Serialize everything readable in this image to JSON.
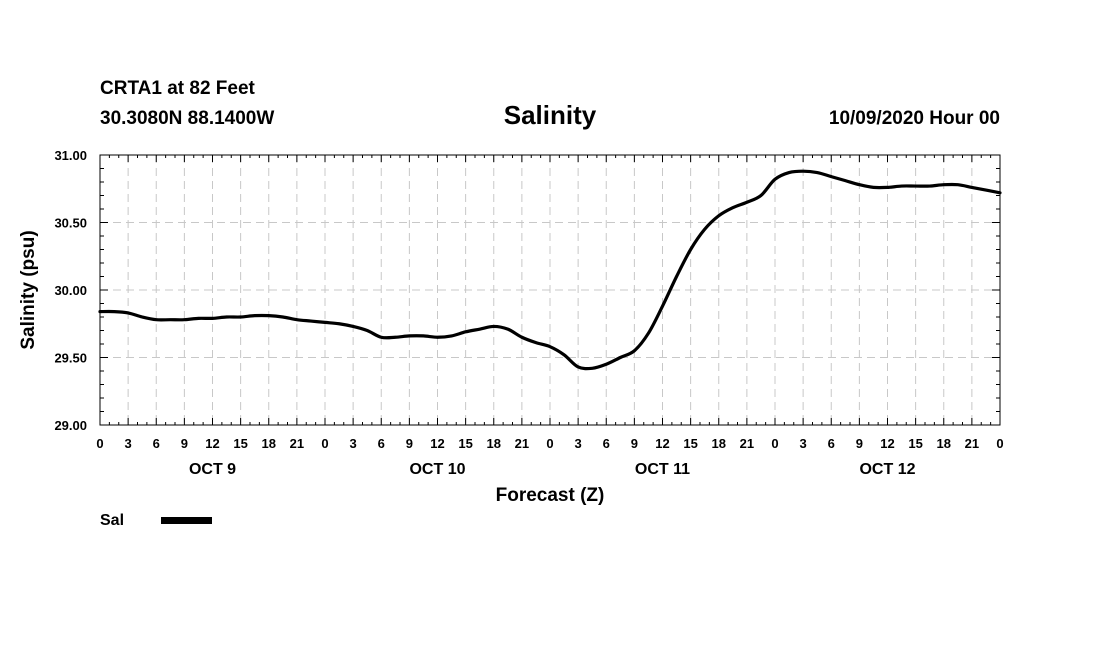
{
  "header": {
    "station": "CRTA1 at 82 Feet",
    "coords": "30.3080N 88.1400W",
    "title": "Salinity",
    "run": "10/09/2020 Hour 00"
  },
  "legend": {
    "label": "Sal"
  },
  "chart_data": {
    "type": "line",
    "title": "Salinity",
    "xlabel": "Forecast (Z)",
    "ylabel": "Salinity (psu)",
    "ylim": [
      29.0,
      31.0
    ],
    "yticks": [
      "29.00",
      "29.50",
      "30.00",
      "30.50",
      "31.00"
    ],
    "xlim": [
      0,
      96
    ],
    "xticks": [
      "0",
      "3",
      "6",
      "9",
      "12",
      "15",
      "18",
      "21",
      "0",
      "3",
      "6",
      "9",
      "12",
      "15",
      "18",
      "21",
      "0",
      "3",
      "6",
      "9",
      "12",
      "15",
      "18",
      "21",
      "0",
      "3",
      "6",
      "9",
      "12",
      "15",
      "18",
      "21",
      "0"
    ],
    "day_labels": [
      "OCT 9",
      "OCT 10",
      "OCT 11",
      "OCT 12"
    ],
    "grid": true,
    "legend_position": "bottom-left",
    "series": [
      {
        "name": "Sal",
        "color": "#000000",
        "x": [
          0,
          1.5,
          3,
          4.5,
          6,
          7.5,
          9,
          10.5,
          12,
          13.5,
          15,
          16.5,
          18,
          19.5,
          21,
          22.5,
          24,
          25.5,
          27,
          28.5,
          30,
          31.5,
          33,
          34.5,
          36,
          37.5,
          39,
          40.5,
          42,
          43.5,
          45,
          46.5,
          48,
          49.5,
          51,
          52.5,
          54,
          55.5,
          57,
          58.5,
          60,
          61.5,
          63,
          64.5,
          66,
          67.5,
          69,
          70.5,
          72,
          73.5,
          75,
          76.5,
          78,
          79.5,
          81,
          82.5,
          84,
          85.5,
          87,
          88.5,
          90,
          91.5,
          93,
          94.5,
          96
        ],
        "values": [
          29.84,
          29.84,
          29.83,
          29.8,
          29.78,
          29.78,
          29.78,
          29.79,
          29.79,
          29.8,
          29.8,
          29.81,
          29.81,
          29.8,
          29.78,
          29.77,
          29.76,
          29.75,
          29.73,
          29.7,
          29.65,
          29.65,
          29.66,
          29.66,
          29.65,
          29.66,
          29.69,
          29.71,
          29.73,
          29.71,
          29.65,
          29.61,
          29.58,
          29.52,
          29.43,
          29.42,
          29.45,
          29.5,
          29.55,
          29.68,
          29.88,
          30.1,
          30.3,
          30.45,
          30.55,
          30.61,
          30.65,
          30.7,
          30.82,
          30.87,
          30.88,
          30.87,
          30.84,
          30.81,
          30.78,
          30.76,
          30.76,
          30.77,
          30.77,
          30.77,
          30.78,
          30.78,
          30.76,
          30.74,
          30.72
        ]
      }
    ]
  }
}
